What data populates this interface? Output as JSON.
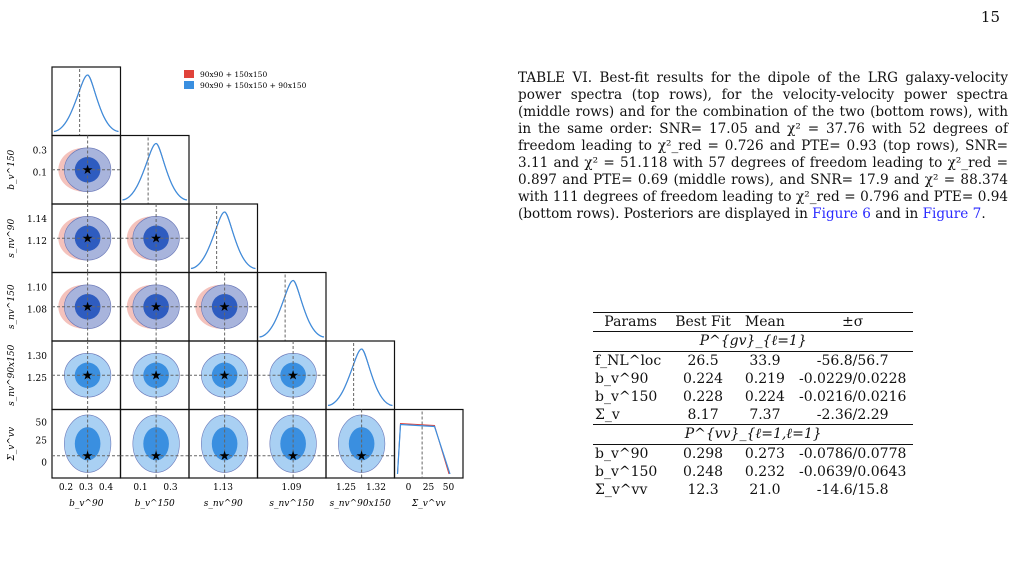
{
  "page_number": "15",
  "figure": {
    "legend": [
      {
        "label": "90x90 + 150x150",
        "color": "#e0423a"
      },
      {
        "label": "90x90 + 150x150 + 90x150",
        "color": "#3a8fe0"
      }
    ],
    "row_labels": [
      "b_v^150",
      "s_nv^90",
      "s_nv^150",
      "s_nv^90x150",
      "Σ_v^vv"
    ],
    "col_labels": [
      "b_v^90",
      "b_v^150",
      "s_nv^90",
      "s_nv^150",
      "s_nv^90x150",
      "Σ_v^vv"
    ],
    "row_ticks": [
      [
        "0.3",
        "0.1"
      ],
      [
        "1.14",
        "1.12"
      ],
      [
        "1.10",
        "1.08"
      ],
      [
        "1.30",
        "1.25"
      ],
      [
        "50",
        "25",
        "0"
      ]
    ],
    "col_ticks": [
      [
        "0.2",
        "0.3",
        "0.4"
      ],
      [
        "0.1",
        "0.3"
      ],
      [
        "1.13"
      ],
      [
        "1.09"
      ],
      [
        "1.25",
        "1.32"
      ],
      [
        "0",
        "25",
        "50"
      ]
    ]
  },
  "caption": {
    "text": "TABLE VI. Best-fit results for the dipole of the LRG galaxy-velocity power spectra (top rows), for the velocity-velocity power spectra (middle rows) and for the combination of the two (bottom rows), with in the same order: SNR= 17.05 and χ² = 37.76 with 52 degrees of freedom leading to χ²_red = 0.726 and PTE= 0.93 (top rows), SNR= 3.11 and χ² = 51.118 with 57 degrees of freedom leading to χ²_red = 0.897 and PTE= 0.69 (middle rows), and SNR= 17.9 and χ² = 88.374 with 111 degrees of freedom leading to χ²_red = 0.796 and PTE= 0.94 (bottom rows). Posteriors are displayed in",
    "link1": "Figure 6",
    "mid": " and in ",
    "link2": "Figure 7",
    "end": "."
  },
  "table": {
    "headers": [
      "Params",
      "Best Fit",
      "Mean",
      "±σ"
    ],
    "section1": "P^{gv}_{ℓ=1}",
    "rows1": [
      [
        "f_NL^loc",
        "26.5",
        "33.9",
        "-56.8/56.7"
      ],
      [
        "b_v^90",
        "0.224",
        "0.219",
        "-0.0229/0.0228"
      ],
      [
        "b_v^150",
        "0.228",
        "0.224",
        "-0.0216/0.0216"
      ],
      [
        "Σ_v",
        "8.17",
        "7.37",
        "-2.36/2.29"
      ]
    ],
    "section2": "P^{vv}_{ℓ=1,ℓ=1}",
    "rows2": [
      [
        "b_v^90",
        "0.298",
        "0.273",
        "-0.0786/0.0778"
      ],
      [
        "b_v^150",
        "0.248",
        "0.232",
        "-0.0639/0.0643"
      ],
      [
        "Σ_v^vv",
        "12.3",
        "21.0",
        "-14.6/15.8"
      ]
    ]
  }
}
